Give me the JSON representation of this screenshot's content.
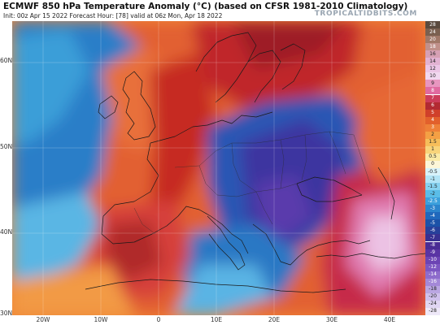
{
  "header": {
    "title": "ECMWF 850 hPa Temperature Anomaly (°C) (based on CFSR 1981-2010 Climatology)",
    "subtitle": "Init: 00z Apr 15 2022   Forecast Hour: [78]   valid at 06z Mon, Apr 18 2022",
    "watermark": "TROPICALTIDBITS.COM"
  },
  "axes": {
    "lat_labels": [
      "60N",
      "50N",
      "40N",
      "30N"
    ],
    "lon_labels": [
      "20W",
      "10W",
      "0",
      "10E",
      "20E",
      "30E",
      "40E"
    ]
  },
  "colorbar": {
    "levels": [
      "28",
      "24",
      "20",
      "18",
      "16",
      "14",
      "12",
      "10",
      "9",
      "8",
      "7",
      "6",
      "5",
      "4",
      "3",
      "2",
      "1.5",
      "1",
      "0.5",
      "0",
      "-0.5",
      "-1",
      "-1.5",
      "-2",
      "-2.5",
      "-3",
      "-4",
      "-5",
      "-6",
      "-7",
      "-8",
      "-9",
      "-10",
      "-12",
      "-14",
      "-16",
      "-18",
      "-20",
      "-24",
      "-28"
    ],
    "colors": [
      "#5a4a3e",
      "#7a6050",
      "#a07868",
      "#c0908a",
      "#d6a0b4",
      "#e2b2d2",
      "#ecc6e6",
      "#f2d8f0",
      "#e896c0",
      "#e06aa0",
      "#cc3c5a",
      "#b22a32",
      "#d0402a",
      "#e2602c",
      "#ee8038",
      "#f4a044",
      "#f6be5a",
      "#f8d47a",
      "#faeaa6",
      "#fcf6d8",
      "#d8f2fa",
      "#b2e4f6",
      "#86d2f0",
      "#5abde8",
      "#3ca0dc",
      "#2c84cc",
      "#2068bc",
      "#1c52a8",
      "#28409a",
      "#383090",
      "#4a2c94",
      "#5a34a4",
      "#6c44b4",
      "#7c56c2",
      "#8e6ccc",
      "#a488d8",
      "#baa6e2",
      "#cfc0ec",
      "#e0d6f2",
      "#eee8f8"
    ]
  },
  "map": {
    "projection": "lat-lon",
    "lat_range": [
      30,
      64
    ],
    "lon_range": [
      -25,
      47
    ],
    "features": [
      "coastlines",
      "country borders"
    ],
    "anomaly_regions": [
      {
        "name": "Atlantic cold tongue",
        "anomaly_c": -4
      },
      {
        "name": "Western Europe warm plume",
        "anomaly_c": 8
      },
      {
        "name": "Scandinavia warm",
        "anomaly_c": 7
      },
      {
        "name": "Central/Eastern Europe cold",
        "anomaly_c": -8
      },
      {
        "name": "Balkans cold core",
        "anomaly_c": -10
      },
      {
        "name": "Turkey/Middle East warm",
        "anomaly_c": 9
      },
      {
        "name": "Iberia/Morocco warm",
        "anomaly_c": 5
      }
    ]
  }
}
